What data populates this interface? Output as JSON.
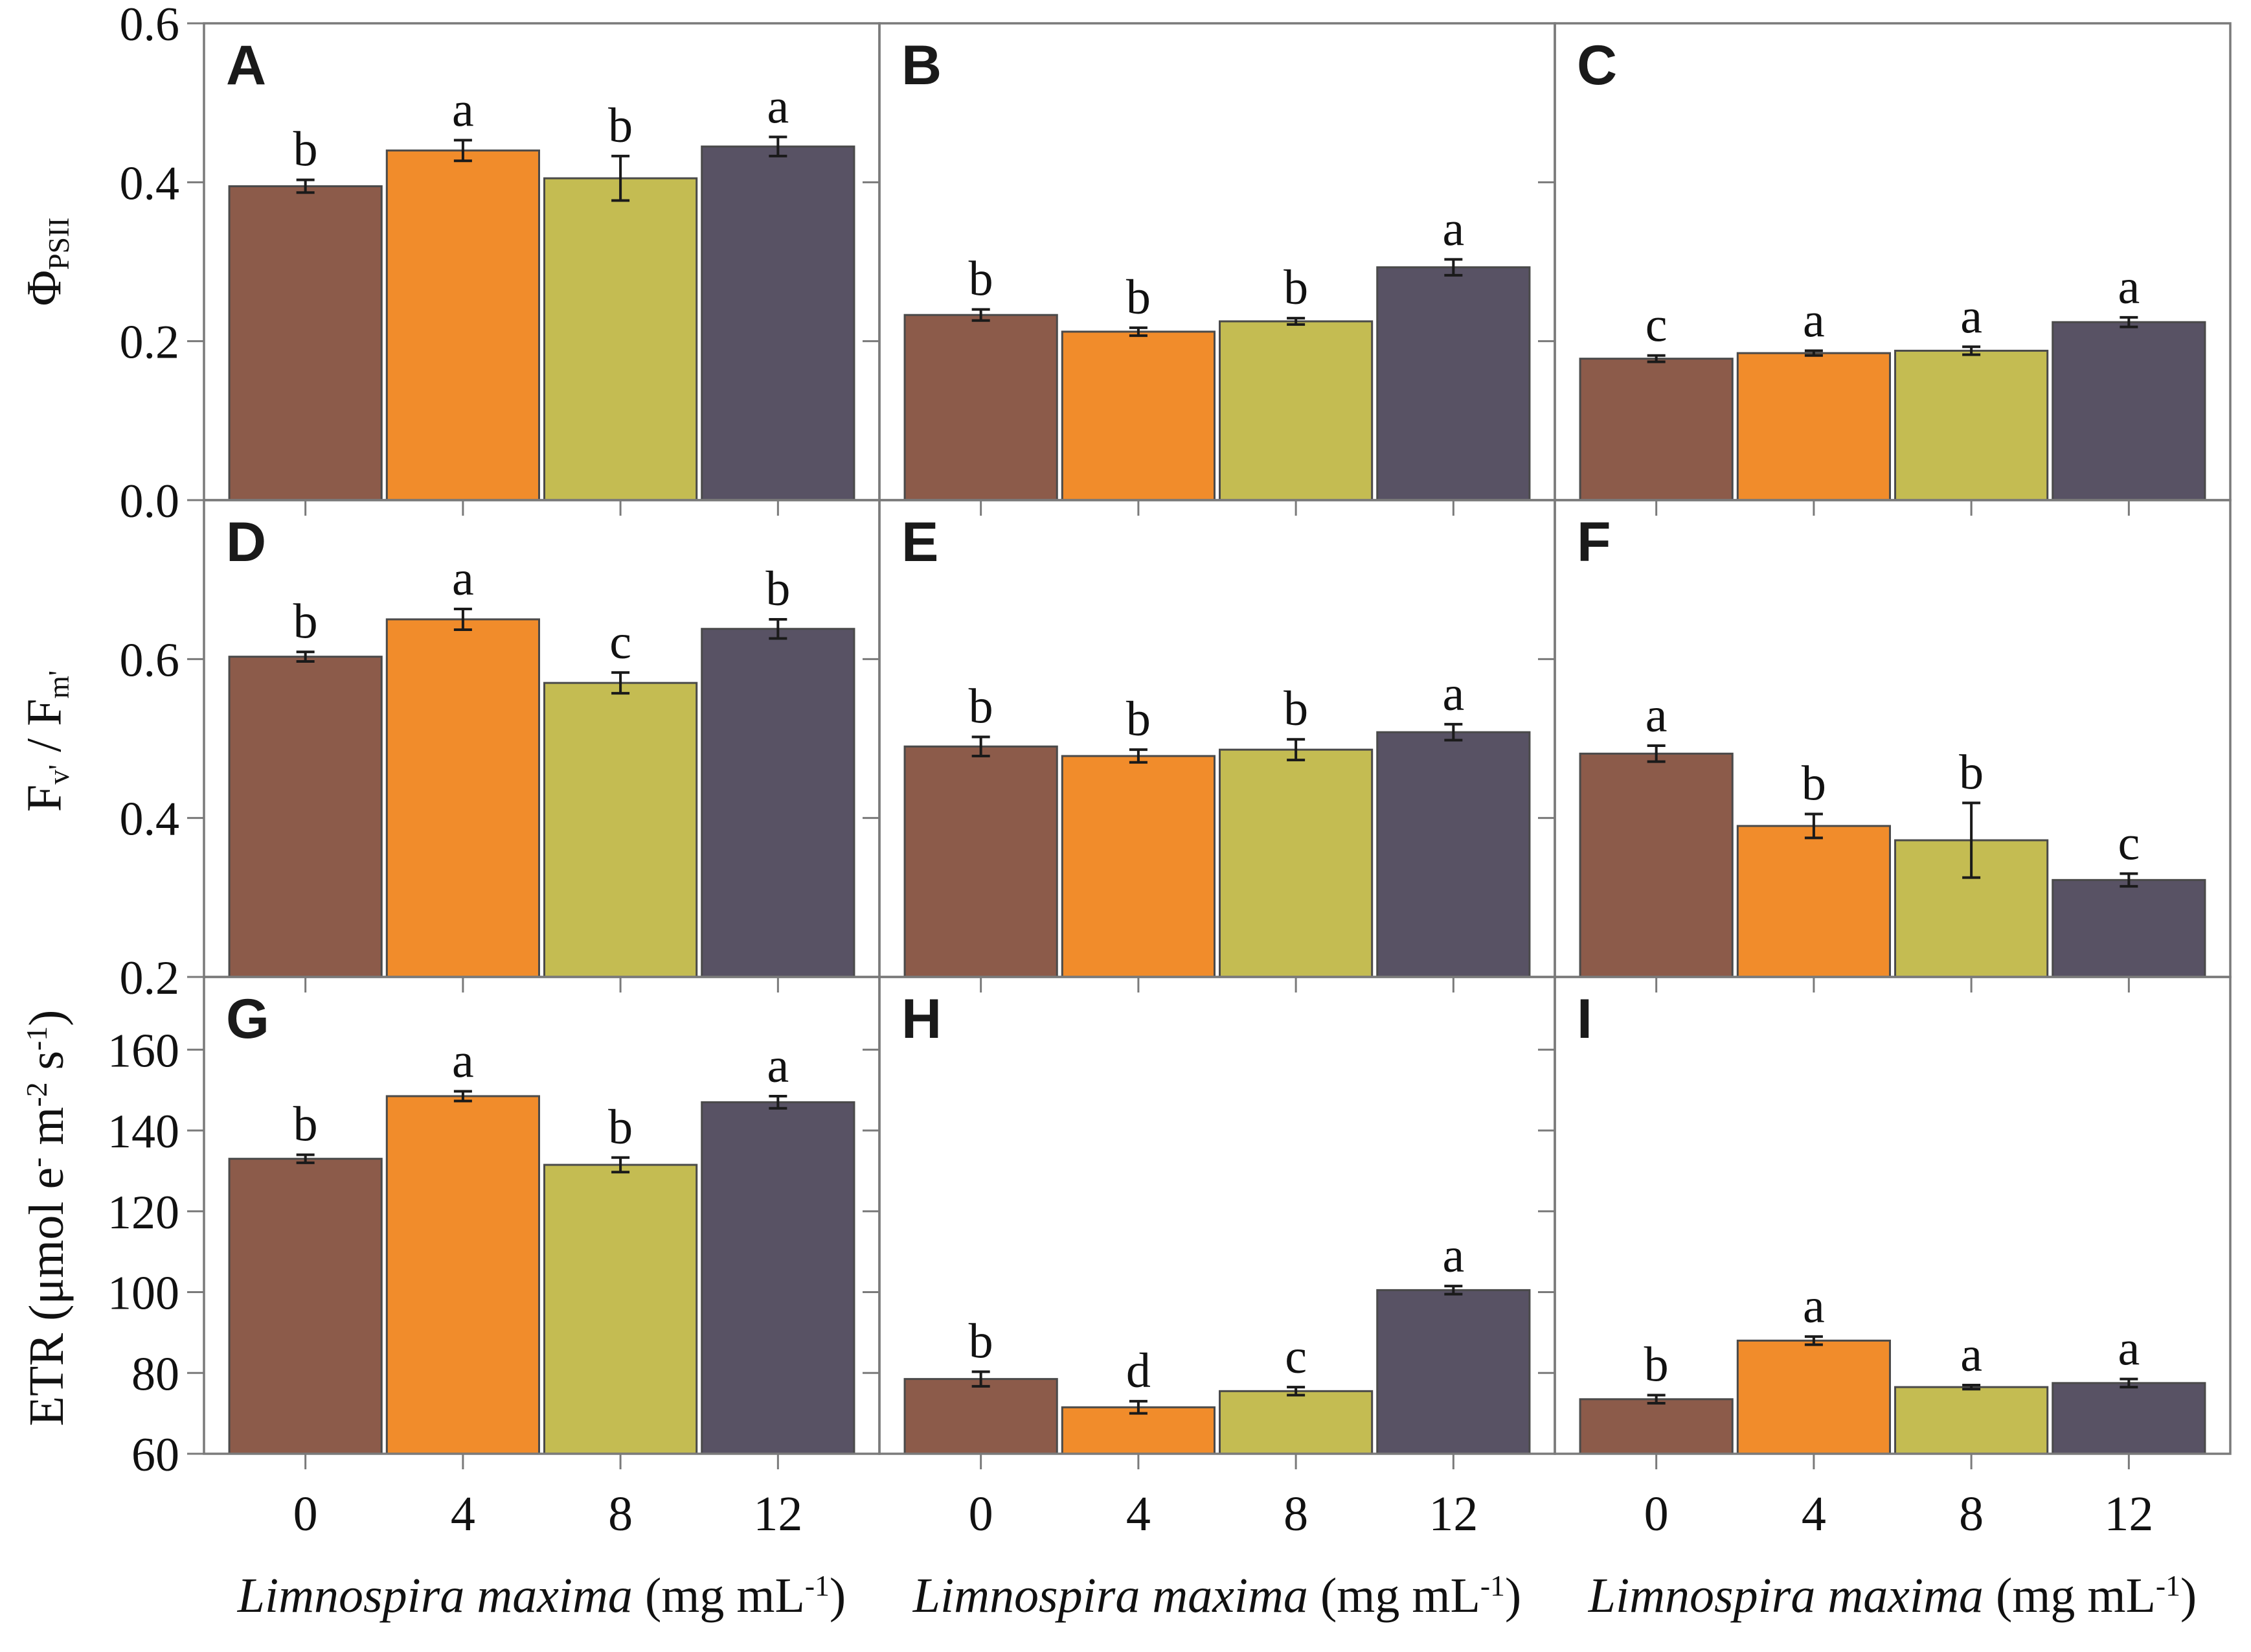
{
  "figure": {
    "background": "#ffffff"
  },
  "ylabels": {
    "row1": {
      "base": "Φ",
      "sub": "PSII"
    },
    "row2": {
      "f1": "F",
      "sub1": "v'",
      "mid": " / F",
      "sub2": "m'"
    },
    "row3": {
      "pre": "ETR (μmol e",
      "sup1": "-",
      "m": " m",
      "sup2": "-2",
      "s": " s",
      "sup3": "-1",
      "post": ")"
    }
  },
  "xlabel": {
    "species": "Limnospira maxima",
    "unit_pre": " (mg mL",
    "unit_sup": "-1",
    "unit_post": ")"
  },
  "axes": {
    "rows": [
      {
        "ylim": [
          0,
          0.6
        ],
        "yticks": [
          0,
          0.2,
          0.4,
          0.6
        ],
        "ytick_labels": [
          "0.0",
          "0.2",
          "0.4",
          "0.6"
        ]
      },
      {
        "ylim": [
          0.2,
          0.8
        ],
        "yticks": [
          0.2,
          0.4,
          0.6
        ],
        "ytick_labels": [
          "0.2",
          "0.4",
          "0.6"
        ]
      },
      {
        "ylim": [
          60,
          178
        ],
        "yticks": [
          60,
          80,
          100,
          120,
          140,
          160
        ],
        "ytick_labels": [
          "60",
          "80",
          "100",
          "120",
          "140",
          "160"
        ]
      }
    ],
    "categories": [
      "0",
      "4",
      "8",
      "12"
    ],
    "grid": false,
    "legend": "none"
  },
  "colors": {
    "bars": [
      "#8C5B4A",
      "#F18C2B",
      "#C4BC52",
      "#585264"
    ],
    "bar_stroke": "#4a4a4a",
    "frame": "#7a7a7a",
    "error": "#1a1a1a",
    "text": "#111111"
  },
  "chart_data": [
    {
      "panel": "A",
      "type": "bar",
      "row": 0,
      "ylabel": "ΦPSII",
      "categories": [
        "0",
        "4",
        "8",
        "12"
      ],
      "values": [
        0.395,
        0.44,
        0.405,
        0.445
      ],
      "errors": [
        0.008,
        0.013,
        0.028,
        0.012
      ],
      "sig_letters": [
        "b",
        "a",
        "b",
        "a"
      ]
    },
    {
      "panel": "B",
      "type": "bar",
      "row": 0,
      "ylabel": "ΦPSII",
      "categories": [
        "0",
        "4",
        "8",
        "12"
      ],
      "values": [
        0.233,
        0.212,
        0.225,
        0.293
      ],
      "errors": [
        0.007,
        0.005,
        0.004,
        0.01
      ],
      "sig_letters": [
        "b",
        "b",
        "b",
        "a"
      ]
    },
    {
      "panel": "C",
      "type": "bar",
      "row": 0,
      "ylabel": "ΦPSII",
      "categories": [
        "0",
        "4",
        "8",
        "12"
      ],
      "values": [
        0.178,
        0.185,
        0.188,
        0.224
      ],
      "errors": [
        0.004,
        0.003,
        0.005,
        0.006
      ],
      "sig_letters": [
        "c",
        "a",
        "a",
        "a"
      ]
    },
    {
      "panel": "D",
      "type": "bar",
      "row": 1,
      "ylabel": "Fv'/Fm'",
      "categories": [
        "0",
        "4",
        "8",
        "12"
      ],
      "values": [
        0.603,
        0.65,
        0.57,
        0.638
      ],
      "errors": [
        0.006,
        0.013,
        0.013,
        0.012
      ],
      "sig_letters": [
        "b",
        "a",
        "c",
        "b"
      ]
    },
    {
      "panel": "E",
      "type": "bar",
      "row": 1,
      "ylabel": "Fv'/Fm'",
      "categories": [
        "0",
        "4",
        "8",
        "12"
      ],
      "values": [
        0.49,
        0.478,
        0.486,
        0.508
      ],
      "errors": [
        0.012,
        0.008,
        0.013,
        0.01
      ],
      "sig_letters": [
        "b",
        "b",
        "b",
        "a"
      ]
    },
    {
      "panel": "F",
      "type": "bar",
      "row": 1,
      "ylabel": "Fv'/Fm'",
      "categories": [
        "0",
        "4",
        "8",
        "12"
      ],
      "values": [
        0.481,
        0.39,
        0.372,
        0.322
      ],
      "errors": [
        0.01,
        0.015,
        0.047,
        0.008
      ],
      "sig_letters": [
        "a",
        "b",
        "b",
        "c"
      ]
    },
    {
      "panel": "G",
      "type": "bar",
      "row": 2,
      "ylabel": "ETR (μmol e- m-2 s-1)",
      "categories": [
        "0",
        "4",
        "8",
        "12"
      ],
      "values": [
        133,
        148.5,
        131.5,
        147
      ],
      "errors": [
        1.0,
        1.2,
        1.8,
        1.5
      ],
      "sig_letters": [
        "b",
        "a",
        "b",
        "a"
      ]
    },
    {
      "panel": "H",
      "type": "bar",
      "row": 2,
      "ylabel": "ETR (μmol e- m-2 s-1)",
      "categories": [
        "0",
        "4",
        "8",
        "12"
      ],
      "values": [
        78.5,
        71.5,
        75.5,
        100.5
      ],
      "errors": [
        1.8,
        1.5,
        1.0,
        1.0
      ],
      "sig_letters": [
        "b",
        "d",
        "c",
        "a"
      ]
    },
    {
      "panel": "I",
      "type": "bar",
      "row": 2,
      "ylabel": "ETR (μmol e- m-2 s-1)",
      "categories": [
        "0",
        "4",
        "8",
        "12"
      ],
      "values": [
        73.5,
        88,
        76.5,
        77.5
      ],
      "errors": [
        1.0,
        1.0,
        0.5,
        1.0
      ],
      "sig_letters": [
        "b",
        "a",
        "a",
        "a"
      ]
    }
  ]
}
